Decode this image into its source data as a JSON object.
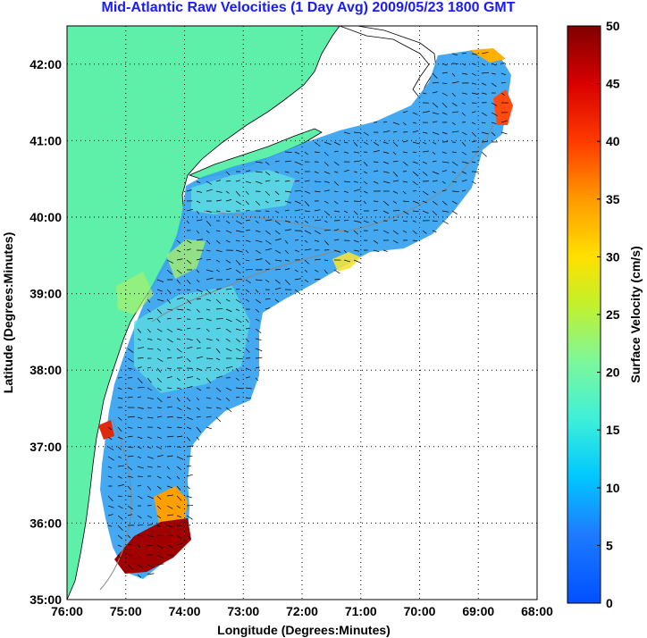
{
  "title": "Mid-Atlantic Raw Velocities (1 Day Avg) 2009/05/23 1800 GMT",
  "map": {
    "xlabel": "Longitude (Degrees:Minutes)",
    "ylabel": "Latitude (Degrees:Minutes)",
    "x_ticks": [
      "76:00",
      "75:00",
      "74:00",
      "73:00",
      "72:00",
      "71:00",
      "70:00",
      "69:00",
      "68:00"
    ],
    "y_ticks": [
      "35:00",
      "36:00",
      "37:00",
      "38:00",
      "39:00",
      "40:00",
      "41:00",
      "42:00"
    ],
    "lon_range": [
      -76,
      -68
    ],
    "lat_range": [
      35,
      42.5
    ],
    "land_color": "#5ef0a8",
    "grid": "dotted"
  },
  "colorbar": {
    "label": "Surface Velocity (cm/s)",
    "ticks": [
      "0",
      "5",
      "10",
      "15",
      "20",
      "25",
      "30",
      "35",
      "40",
      "45",
      "50"
    ],
    "range": [
      0,
      50
    ],
    "colormap": "jet"
  }
}
